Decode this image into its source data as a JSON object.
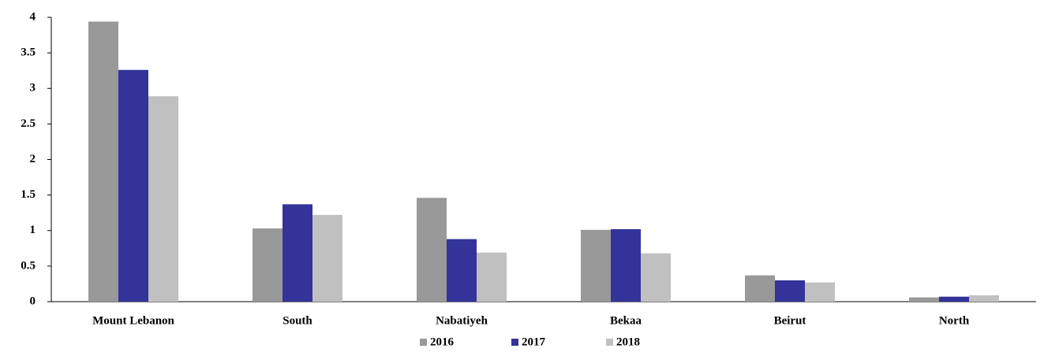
{
  "chart_data": {
    "type": "bar",
    "categories": [
      "Mount Lebanon",
      "South",
      "Nabatiyeh",
      "Bekaa",
      "Beirut",
      "North"
    ],
    "series": [
      {
        "name": "2016",
        "color": "#999999",
        "values": [
          3.94,
          1.03,
          1.46,
          1.01,
          0.37,
          0.06
        ]
      },
      {
        "name": "2017",
        "color": "#333399",
        "values": [
          3.26,
          1.37,
          0.88,
          1.02,
          0.3,
          0.07
        ]
      },
      {
        "name": "2018",
        "color": "#c0c0c0",
        "values": [
          2.89,
          1.22,
          0.69,
          0.68,
          0.27,
          0.09
        ]
      }
    ],
    "ylim": [
      0,
      4
    ],
    "yticks": [
      0,
      0.5,
      1,
      1.5,
      2,
      2.5,
      3,
      3.5,
      4
    ],
    "grid": false,
    "legend": "bottom"
  }
}
